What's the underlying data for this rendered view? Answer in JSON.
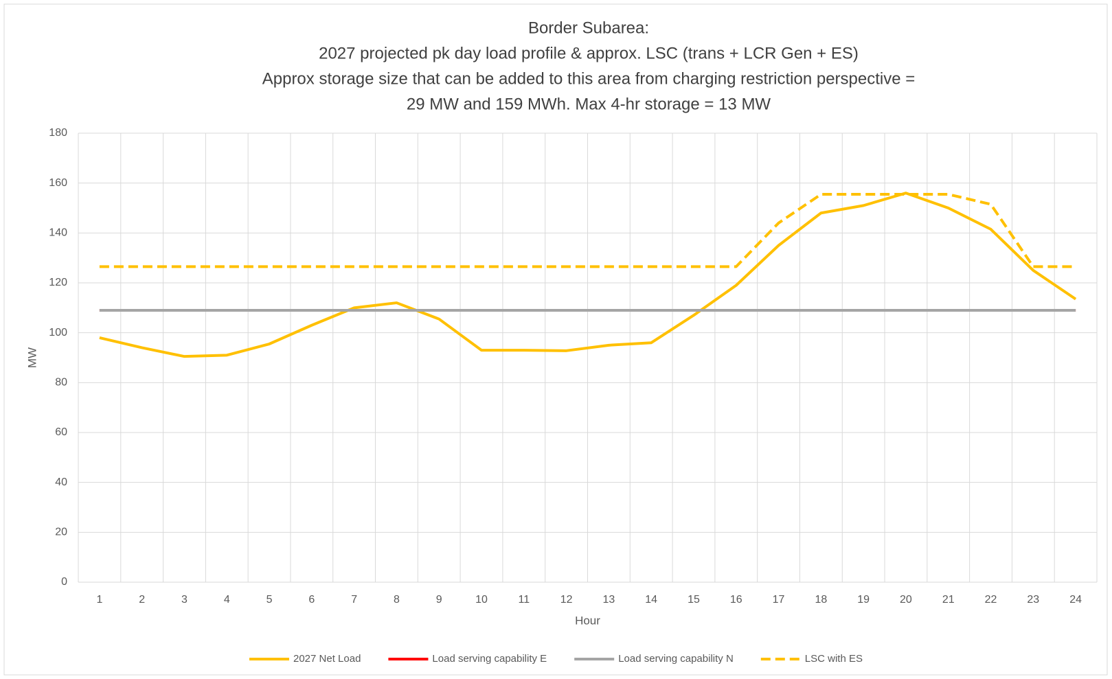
{
  "chart_data": {
    "type": "line",
    "title": [
      "Border Subarea:",
      "2027 projected pk day load profile & approx. LSC (trans + LCR Gen + ES)",
      "Approx storage size that can be added to this area from charging restriction perspective =",
      "29 MW and 159 MWh. Max 4-hr storage = 13 MW"
    ],
    "x_label": "Hour",
    "y_label": "MW",
    "categories": [
      "1",
      "2",
      "3",
      "4",
      "5",
      "6",
      "7",
      "8",
      "9",
      "10",
      "11",
      "12",
      "13",
      "14",
      "15",
      "16",
      "17",
      "18",
      "19",
      "20",
      "21",
      "22",
      "23",
      "24"
    ],
    "series": [
      {
        "name": "2027 Net Load",
        "color": "#FFC000",
        "dash": false,
        "values": [
          98,
          94,
          90.5,
          91,
          95.5,
          103,
          110,
          112,
          105.5,
          93,
          93,
          92.8,
          95,
          96,
          107,
          119,
          135,
          148,
          151,
          156,
          150,
          141.5,
          125,
          113.5
        ]
      },
      {
        "name": "Load serving capability E",
        "color": "#FF0000",
        "dash": false,
        "values": [
          109,
          109,
          109,
          109,
          109,
          109,
          109,
          109,
          109,
          109,
          109,
          109,
          109,
          109,
          109,
          109,
          109,
          109,
          109,
          109,
          109,
          109,
          109,
          109
        ]
      },
      {
        "name": "Load serving capability N",
        "color": "#A5A5A5",
        "dash": false,
        "values": [
          109,
          109,
          109,
          109,
          109,
          109,
          109,
          109,
          109,
          109,
          109,
          109,
          109,
          109,
          109,
          109,
          109,
          109,
          109,
          109,
          109,
          109,
          109,
          109
        ]
      },
      {
        "name": "LSC with ES",
        "color": "#FFC000",
        "dash": true,
        "values": [
          126.5,
          126.5,
          126.5,
          126.5,
          126.5,
          126.5,
          126.5,
          126.5,
          126.5,
          126.5,
          126.5,
          126.5,
          126.5,
          126.5,
          126.5,
          126.5,
          144,
          155.5,
          155.5,
          155.5,
          155.5,
          151.5,
          126.5,
          126.5
        ]
      }
    ],
    "ylim": [
      0,
      180
    ],
    "yticks": [
      0,
      20,
      40,
      60,
      80,
      100,
      120,
      140,
      160,
      180
    ],
    "grid": true,
    "legend": "bottom"
  }
}
